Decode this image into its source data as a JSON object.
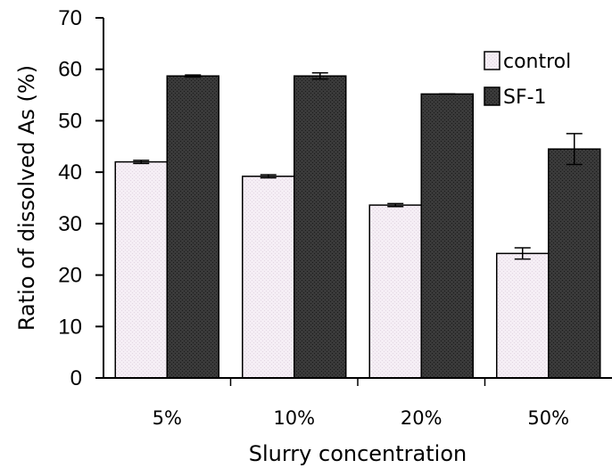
{
  "chart_data": {
    "type": "bar",
    "xlabel": "Slurry concentration",
    "ylabel": "Ratio of dissolved As (%)",
    "ylim": [
      0,
      70
    ],
    "yticks": [
      "0",
      "10",
      "20",
      "30",
      "40",
      "50",
      "60",
      "70"
    ],
    "categories": [
      "5%",
      "10%",
      "20%",
      "50%"
    ],
    "series": [
      {
        "name": "control",
        "color": "#f3eaf3",
        "values": [
          42.0,
          39.2,
          33.6,
          24.2
        ],
        "errors": [
          0.3,
          0.3,
          0.3,
          1.1
        ]
      },
      {
        "name": "SF-1",
        "color": "#2f2f2f",
        "values": [
          58.7,
          58.7,
          55.2,
          44.5
        ],
        "errors": [
          0.2,
          0.6,
          0.0,
          3.0
        ]
      }
    ],
    "legend": "top-right",
    "grid": false
  }
}
